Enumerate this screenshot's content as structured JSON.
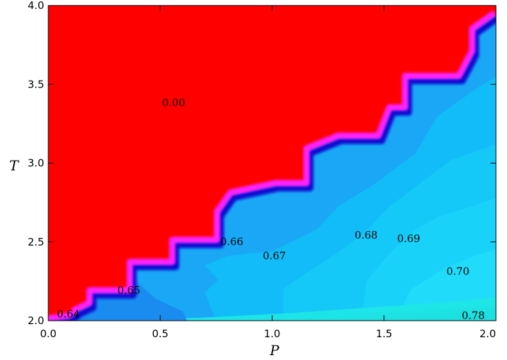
{
  "chart_data": {
    "type": "heatmap",
    "title": "",
    "xlabel": "P",
    "ylabel": "T",
    "xlim": [
      0.0,
      2.0
    ],
    "ylim": [
      2.0,
      4.0
    ],
    "xticks": [
      0.0,
      0.5,
      1.0,
      1.5,
      2.0
    ],
    "xtick_labels": [
      "0.0",
      "0.5",
      "1.0",
      "1.5",
      "2.0"
    ],
    "yticks": [
      2.0,
      2.5,
      3.0,
      3.5,
      4.0
    ],
    "ytick_labels": [
      "2.0",
      "2.5",
      "3.0",
      "3.5",
      "4.0"
    ],
    "colors": {
      "zero_region": "#ff0000",
      "boundary_magenta": "#ff22ff",
      "boundary_blue": "#0a10d0",
      "level_065": "#1a8cf0",
      "level_066": "#1aa8f6",
      "level_067": "#12bcf8",
      "level_068": "#14c8f8",
      "level_069": "#18d2fa",
      "level_070": "#20dcfa",
      "level_074": "#1fe6e6",
      "level_078": "#0c5c5c"
    },
    "boundary": [
      [
        0.0,
        2.0
      ],
      [
        0.1,
        2.02
      ],
      [
        0.13,
        2.06
      ],
      [
        0.19,
        2.1
      ],
      [
        0.19,
        2.18
      ],
      [
        0.37,
        2.18
      ],
      [
        0.37,
        2.36
      ],
      [
        0.56,
        2.36
      ],
      [
        0.56,
        2.5
      ],
      [
        0.76,
        2.5
      ],
      [
        0.76,
        2.68
      ],
      [
        0.82,
        2.8
      ],
      [
        1.02,
        2.86
      ],
      [
        1.16,
        2.86
      ],
      [
        1.16,
        3.08
      ],
      [
        1.3,
        3.16
      ],
      [
        1.48,
        3.16
      ],
      [
        1.53,
        3.34
      ],
      [
        1.6,
        3.34
      ],
      [
        1.6,
        3.54
      ],
      [
        1.84,
        3.54
      ],
      [
        1.9,
        3.7
      ],
      [
        1.9,
        3.84
      ],
      [
        2.0,
        3.94
      ]
    ],
    "contour_labels": [
      {
        "text": "0.00",
        "x": 0.56,
        "y": 3.36
      },
      {
        "text": "0.64",
        "x": 0.09,
        "y": 2.02
      },
      {
        "text": "0.65",
        "x": 0.36,
        "y": 2.17
      },
      {
        "text": "0.66",
        "x": 0.82,
        "y": 2.48
      },
      {
        "text": "0.67",
        "x": 1.01,
        "y": 2.39
      },
      {
        "text": "0.68",
        "x": 1.42,
        "y": 2.52
      },
      {
        "text": "0.69",
        "x": 1.61,
        "y": 2.5
      },
      {
        "text": "0.70",
        "x": 1.83,
        "y": 2.29
      },
      {
        "text": "0.78",
        "x": 1.95,
        "y": 2.01
      }
    ]
  }
}
